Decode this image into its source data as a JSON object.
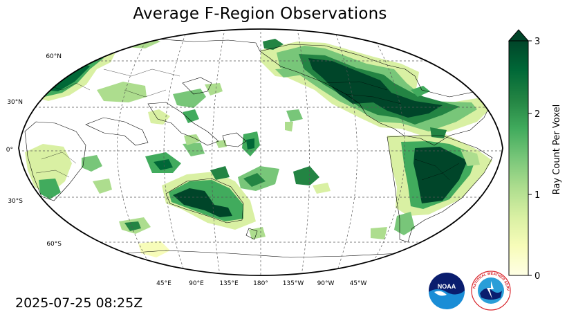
{
  "title": "Average F-Region Observations",
  "timestamp": "2025-07-25 08:25Z",
  "map": {
    "projection": "Robinson, centered 180°",
    "lat_labels": [
      "60°N",
      "30°N",
      "0°",
      "30°S",
      "60°S"
    ],
    "lon_labels": [
      "45°E",
      "90°E",
      "135°E",
      "180°",
      "135°W",
      "90°W",
      "45°W"
    ],
    "gridlines": "dashed",
    "coastlines": true,
    "country_borders": true
  },
  "colorbar": {
    "label": "Ray Count Per Voxel",
    "ticks": [
      "0",
      "1",
      "2",
      "3"
    ],
    "min": 0,
    "max": 3,
    "extend": "max",
    "colormap": "YlGn",
    "colors": [
      "#ffffe5",
      "#f7fcb9",
      "#d9f0a3",
      "#addd8e",
      "#78c679",
      "#41ab5d",
      "#238443",
      "#006837",
      "#004529"
    ]
  },
  "logos": {
    "noaa": "NOAA",
    "nws": "NATIONAL WEATHER SERVICE"
  }
}
